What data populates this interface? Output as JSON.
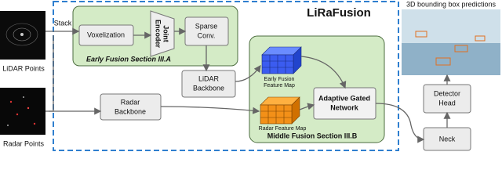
{
  "title": "LiRaFusion",
  "output_caption": "3D bounding box predictions",
  "stack_label": "Stack",
  "inputs": [
    {
      "label": "LiDAR Points"
    },
    {
      "label": "Radar Points"
    }
  ],
  "sections": [
    {
      "label": "Early Fusion Section III.A"
    },
    {
      "label": "Middle Fusion Section III.B"
    }
  ],
  "nodes": [
    {
      "lines": [
        "Voxelization"
      ]
    },
    {
      "lines": [
        "Joint",
        "Encoder"
      ]
    },
    {
      "lines": [
        "Sparse",
        "Conv."
      ]
    },
    {
      "lines": [
        "LiDAR",
        "Backbone"
      ]
    },
    {
      "lines": [
        "Radar",
        "Backbone"
      ]
    },
    {
      "lines": [
        "Adaptive Gated",
        "Network"
      ]
    },
    {
      "lines": [
        "Detector",
        "Head"
      ]
    },
    {
      "lines": [
        "Neck"
      ]
    }
  ],
  "feature_maps": [
    {
      "lines": [
        "Early Fusion",
        "Feature Map"
      ]
    },
    {
      "lines": [
        "Radar Feature Map"
      ]
    }
  ]
}
